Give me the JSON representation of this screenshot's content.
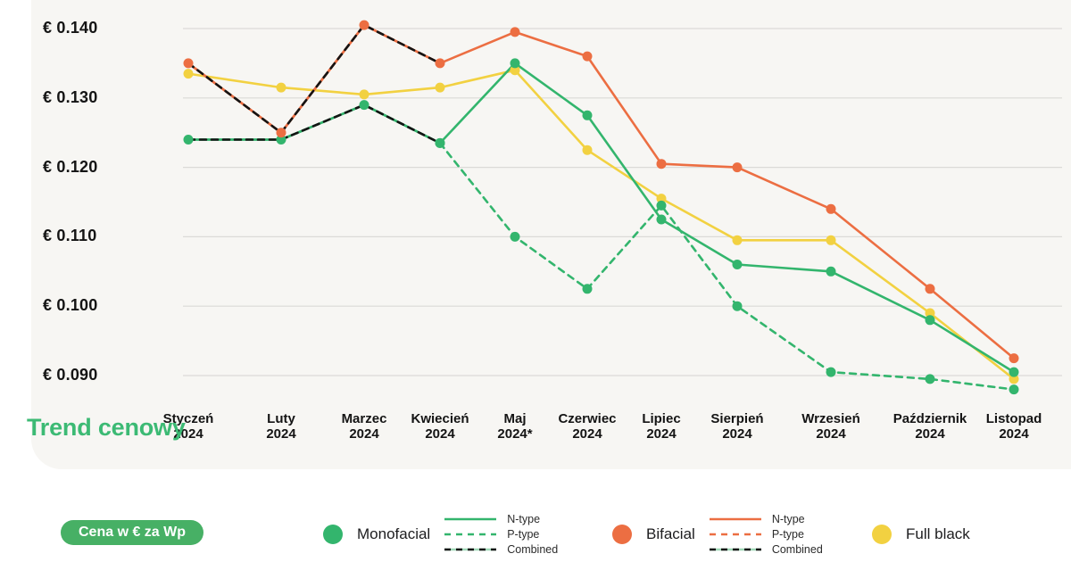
{
  "title": "Trend cenowy",
  "price_unit_badge": "Cena w € za Wp",
  "y_axis": {
    "tick_labels": [
      "€ 0.140",
      "€ 0.130",
      "€ 0.120",
      "€ 0.110",
      "€ 0.100",
      "€ 0.090"
    ],
    "tick_values": [
      0.14,
      0.13,
      0.12,
      0.11,
      0.1,
      0.09
    ]
  },
  "x_axis": {
    "months": [
      {
        "name": "Styczeń",
        "year": "2024"
      },
      {
        "name": "Luty",
        "year": "2024"
      },
      {
        "name": "Marzec",
        "year": "2024"
      },
      {
        "name": "Kwiecień",
        "year": "2024"
      },
      {
        "name": "Maj",
        "year": "2024*"
      },
      {
        "name": "Czerwiec",
        "year": "2024"
      },
      {
        "name": "Lipiec",
        "year": "2024"
      },
      {
        "name": "Sierpień",
        "year": "2024"
      },
      {
        "name": "Wrzesień",
        "year": "2024"
      },
      {
        "name": "Październik",
        "year": "2024"
      },
      {
        "name": "Listopad",
        "year": "2024"
      }
    ]
  },
  "legend": {
    "groups": [
      {
        "name": "Monofacial",
        "color": "#33b56d",
        "items": [
          {
            "label": "N-type",
            "line": "solid",
            "color": "#33b56d"
          },
          {
            "label": "P-type",
            "line": "dashed",
            "color": "#33b56d"
          },
          {
            "label": "Combined",
            "line": "dashed-black",
            "color": "#141414"
          }
        ]
      },
      {
        "name": "Bifacial",
        "color": "#ec6e42",
        "items": [
          {
            "label": "N-type",
            "line": "solid",
            "color": "#ec6e42"
          },
          {
            "label": "P-type",
            "line": "dashed",
            "color": "#ec6e42"
          },
          {
            "label": "Combined",
            "line": "dashed-black",
            "color": "#141414"
          }
        ]
      },
      {
        "name": "Full black",
        "color": "#f2d141",
        "items": []
      }
    ]
  },
  "chart_data": {
    "type": "line",
    "title": "Trend cenowy",
    "ylabel": "Cena w € za Wp",
    "ylim": [
      0.09,
      0.14
    ],
    "grid": "horizontal",
    "categories": [
      "Styczeń 2024",
      "Luty 2024",
      "Marzec 2024",
      "Kwiecień 2024",
      "Maj 2024*",
      "Czerwiec 2024",
      "Lipiec 2024",
      "Sierpień 2024",
      "Wrzesień 2024",
      "Październik 2024",
      "Listopad 2024"
    ],
    "series": [
      {
        "name": "Full black",
        "color": "#f2d141",
        "style": "solid",
        "markers": true,
        "values": [
          0.1335,
          0.1315,
          0.1305,
          0.1315,
          0.134,
          0.1225,
          0.1155,
          0.1095,
          0.1095,
          0.099,
          0.0895
        ]
      },
      {
        "name": "Monofacial P-type",
        "color": "#33b56d",
        "style": "dashed",
        "markers": true,
        "values": [
          null,
          null,
          null,
          0.1235,
          0.11,
          0.1025,
          0.1145,
          0.1,
          0.0905,
          0.0895,
          0.088
        ]
      },
      {
        "name": "Monofacial N-type",
        "color": "#33b56d",
        "style": "solid",
        "markers": true,
        "values": [
          0.124,
          0.124,
          0.129,
          0.1235,
          0.135,
          0.1275,
          0.1125,
          0.106,
          0.105,
          0.098,
          0.0905
        ]
      },
      {
        "name": "Bifacial N-type",
        "color": "#ec6e42",
        "style": "solid",
        "markers": true,
        "values": [
          0.135,
          0.125,
          0.1405,
          0.135,
          0.1395,
          0.136,
          0.1205,
          0.12,
          0.114,
          0.1025,
          0.0925
        ]
      },
      {
        "name": "Monofacial Combined",
        "color": "#141414",
        "style": "dashed",
        "markers": false,
        "overlay_on": "#33b56d",
        "values": [
          0.124,
          0.124,
          0.129,
          0.1235,
          null,
          null,
          null,
          null,
          null,
          null,
          null
        ]
      },
      {
        "name": "Bifacial Combined",
        "color": "#141414",
        "style": "dashed",
        "markers": false,
        "overlay_on": "#ec6e42",
        "values": [
          0.135,
          0.125,
          0.1405,
          0.135,
          null,
          null,
          null,
          null,
          null,
          null,
          null
        ]
      }
    ]
  }
}
